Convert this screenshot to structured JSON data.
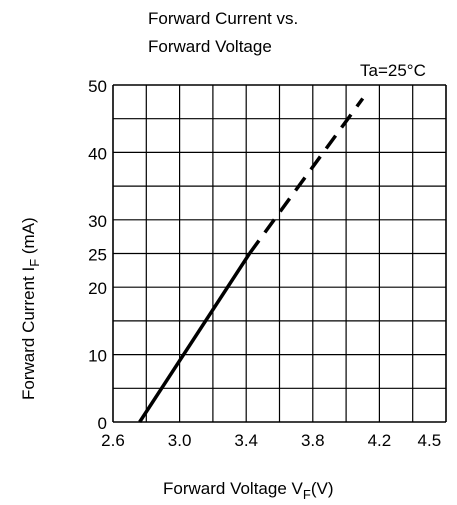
{
  "chart_data": {
    "type": "line",
    "title": "Forward Current vs.",
    "subtitle": "Forward Voltage",
    "annotation": "Ta=25°C",
    "xlabel": {
      "text": "Forward Voltage  V",
      "sub": "F",
      "unit": "(V)"
    },
    "ylabel": {
      "text": "Forward Current    I",
      "sub": "F",
      "unit": " (mA)"
    },
    "x_ticks": [
      {
        "value": 2.6,
        "label": "2.6"
      },
      {
        "value": 3.0,
        "label": "3.0"
      },
      {
        "value": 3.4,
        "label": "3.4"
      },
      {
        "value": 3.8,
        "label": "3.8"
      },
      {
        "value": 4.2,
        "label": "4.2"
      },
      {
        "value": 4.5,
        "label": "4.5"
      }
    ],
    "y_ticks": [
      {
        "value": 0,
        "label": "0"
      },
      {
        "value": 10,
        "label": "10"
      },
      {
        "value": 20,
        "label": "20"
      },
      {
        "value": 25,
        "label": "25"
      },
      {
        "value": 30,
        "label": "30"
      },
      {
        "value": 40,
        "label": "40"
      },
      {
        "value": 50,
        "label": "50"
      }
    ],
    "xlim": [
      2.6,
      4.5
    ],
    "ylim": [
      0,
      50
    ],
    "grid": true,
    "series": [
      {
        "style": "solid",
        "x": [
          2.76,
          3.42
        ],
        "y": [
          0,
          25
        ]
      },
      {
        "style": "dashed",
        "x": [
          3.42,
          4.1
        ],
        "y": [
          25,
          48
        ]
      }
    ]
  }
}
